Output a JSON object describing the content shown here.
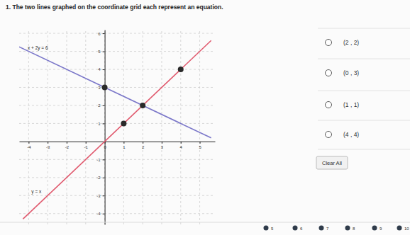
{
  "question": "1. The two lines graphed on the coordinate grid each represent an equation.",
  "chart_data": {
    "type": "line",
    "xlim": [
      -4.5,
      5.8
    ],
    "ylim": [
      -4.6,
      6.2
    ],
    "xticks": [
      -4,
      -3,
      -2,
      -1,
      0,
      1,
      2,
      3,
      4,
      5
    ],
    "yticks": [
      -4,
      -3,
      -2,
      -1,
      1,
      2,
      3,
      4,
      5,
      6
    ],
    "grid": true,
    "series": [
      {
        "name": "x + 2y = 6",
        "color": "#7b77c9",
        "x": [
          -4.5,
          5.6
        ],
        "values": [
          5.25,
          0.2
        ]
      },
      {
        "name": "y = x",
        "color": "#e0596d",
        "x": [
          -4.3,
          5.6
        ],
        "values": [
          -4.3,
          5.6
        ]
      },
      {
        "type": "scatter",
        "color": "#2a2a2a",
        "x": [
          0,
          2,
          4,
          1
        ],
        "values": [
          3,
          2,
          4,
          1
        ]
      }
    ]
  },
  "options": [
    "(2 , 2)",
    "(0 , 3)",
    "(1 , 1)",
    "(4 , 4)"
  ],
  "clear_button": "Clear All",
  "pages": [
    5,
    6,
    7,
    8,
    9,
    10
  ]
}
